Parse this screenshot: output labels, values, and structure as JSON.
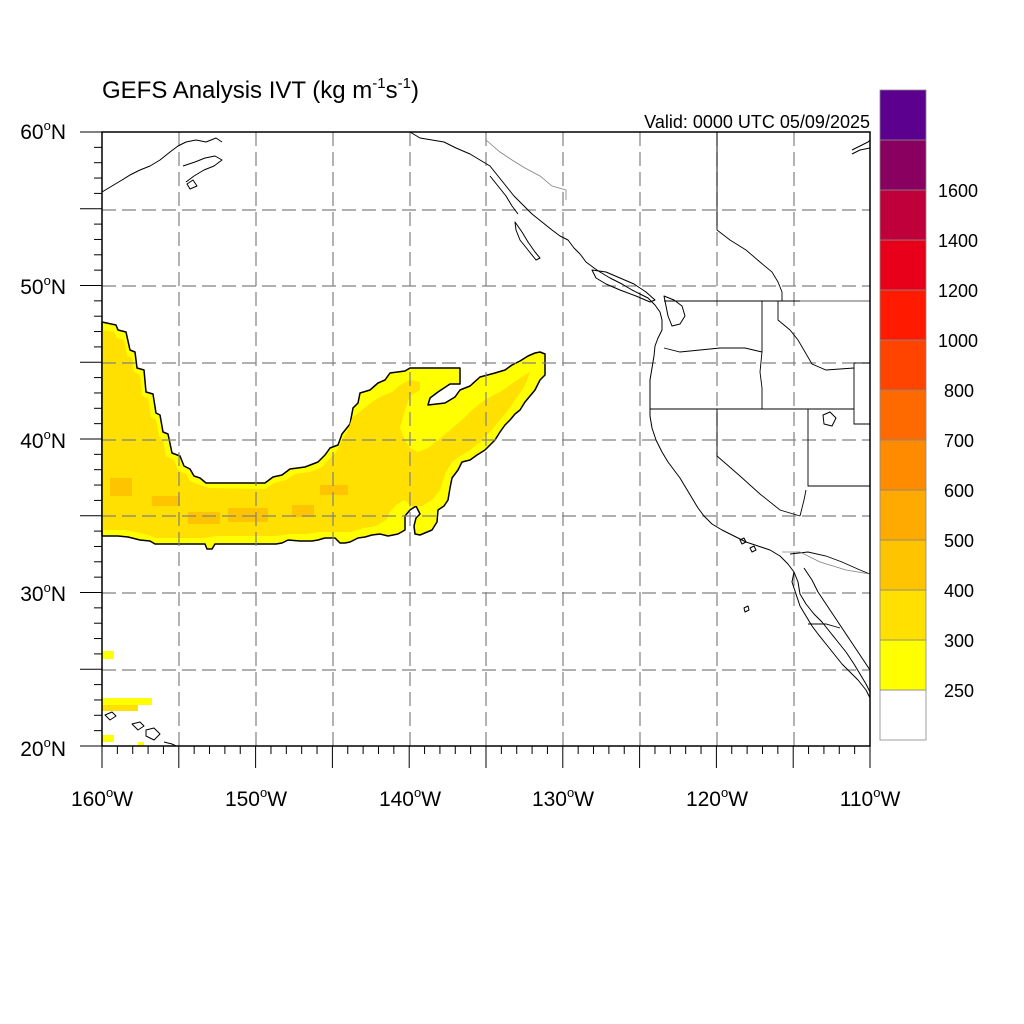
{
  "title": {
    "main": "GEFS Analysis IVT (kg m",
    "sup1": "-1",
    "mid": "s",
    "sup2": "-1",
    "close": ")"
  },
  "valid_text": "Valid: 0000 UTC 05/09/2025",
  "map": {
    "lon_range": [
      -160,
      -110
    ],
    "lat_range": [
      20,
      60
    ],
    "grid": "dashed",
    "lat_labels": [
      "20",
      "30",
      "40",
      "50",
      "60"
    ],
    "lat_suffix": "N",
    "lon_labels": [
      "160",
      "150",
      "140",
      "130",
      "120",
      "110"
    ],
    "lon_suffix": "W",
    "degree_symbol": "o"
  },
  "colorbar": {
    "labels": [
      "250",
      "300",
      "400",
      "500",
      "600",
      "700",
      "800",
      "1000",
      "1200",
      "1400",
      "1600"
    ],
    "colors": [
      "#ffffff",
      "#ffff00",
      "#ffe000",
      "#ffc400",
      "#ffaa00",
      "#ff8c00",
      "#ff6a00",
      "#ff4400",
      "#ff1a00",
      "#e8001a",
      "#c0003a",
      "#8a0060",
      "#5c0090"
    ]
  },
  "ivt_field": {
    "units": "kg m-1 s-1",
    "feature": "atmospheric-river",
    "main_band_lon_range": [
      -160,
      -131
    ],
    "main_band_lat_range": [
      33,
      47.5
    ],
    "value_range": [
      250,
      400
    ]
  }
}
